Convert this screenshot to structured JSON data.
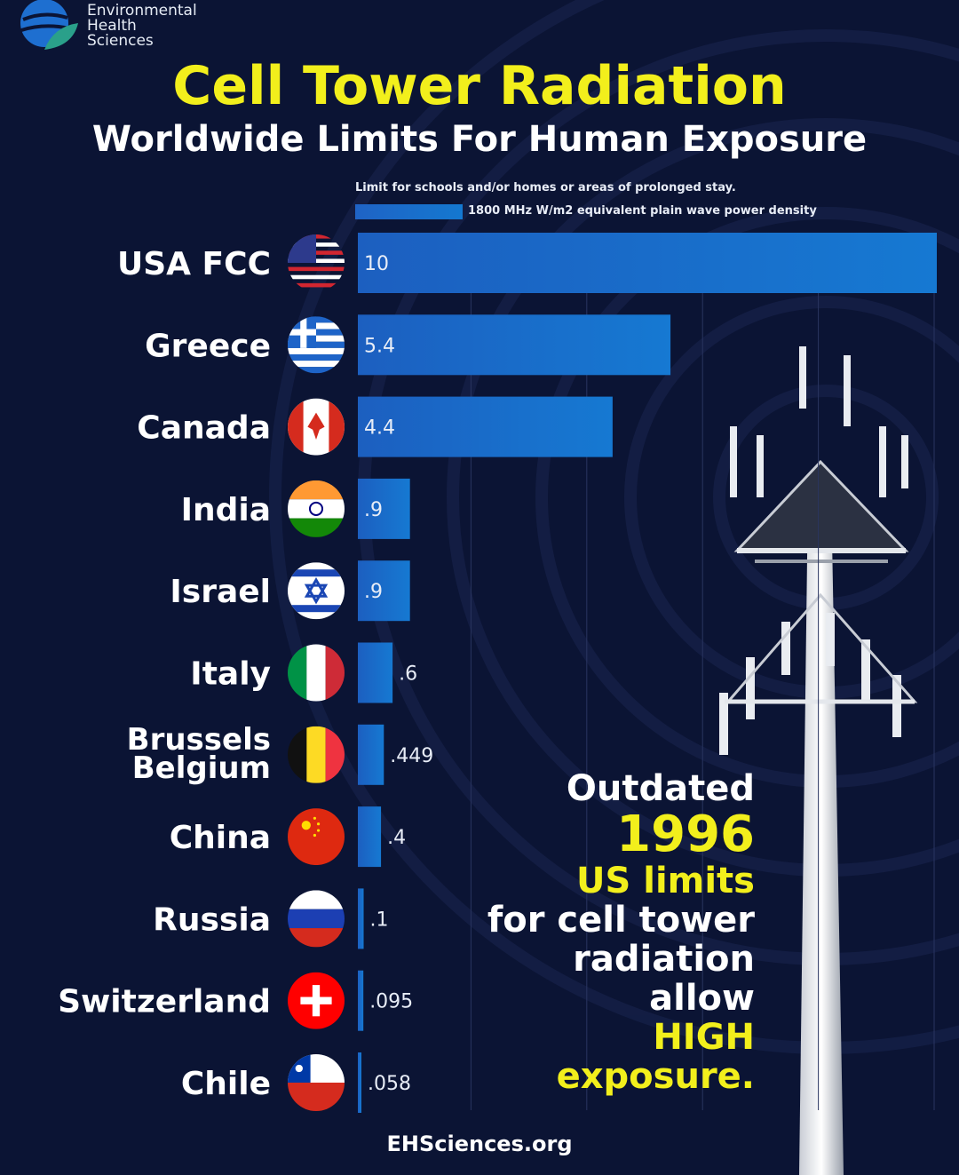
{
  "brand": {
    "line1": "Environmental",
    "line2": "Health",
    "line3": "Sciences",
    "logo_icon": "globe-leaf-icon"
  },
  "title": "Cell Tower Radiation",
  "subtitle": "Worldwide Limits For Human Exposure",
  "legend": {
    "note": "Limit for schools and/or homes or areas of prolonged stay.",
    "series_label": "1800 MHz W/m2 equivalent plain wave power density"
  },
  "chart_data": {
    "type": "bar",
    "orientation": "horizontal",
    "categories": [
      "USA FCC",
      "Greece",
      "Canada",
      "India",
      "Israel",
      "Italy",
      "Brussels Belgium",
      "China",
      "Russia",
      "Switzerland",
      "Chile"
    ],
    "series": [
      {
        "name": "1800 MHz W/m2 equivalent plain wave power density",
        "values": [
          10,
          5.4,
          4.4,
          0.9,
          0.9,
          0.6,
          0.449,
          0.4,
          0.1,
          0.095,
          0.058
        ]
      }
    ],
    "value_labels": [
      "10",
      "5.4",
      "4.4",
      ".9",
      ".9",
      ".6",
      ".449",
      ".4",
      ".1",
      ".095",
      ".058"
    ],
    "flags": [
      "usa-flag-icon",
      "greece-flag-icon",
      "canada-flag-icon",
      "india-flag-icon",
      "israel-flag-icon",
      "italy-flag-icon",
      "belgium-flag-icon",
      "china-flag-icon",
      "russia-flag-icon",
      "switzerland-flag-icon",
      "chile-flag-icon"
    ],
    "xlim": [
      0,
      10
    ],
    "grid": true,
    "bar_color": "#1a6fd0"
  },
  "callout": {
    "line1": "Outdated",
    "year": "1996",
    "line3": "US limits",
    "line4": "for cell tower",
    "line5": "radiation",
    "line6": "allow",
    "line7": "HIGH",
    "line8": "exposure."
  },
  "footer": "EHSciences.org",
  "colors": {
    "background": "#0b1434",
    "accent_yellow": "#f2ef1c",
    "bar": "#1a6fd0"
  }
}
